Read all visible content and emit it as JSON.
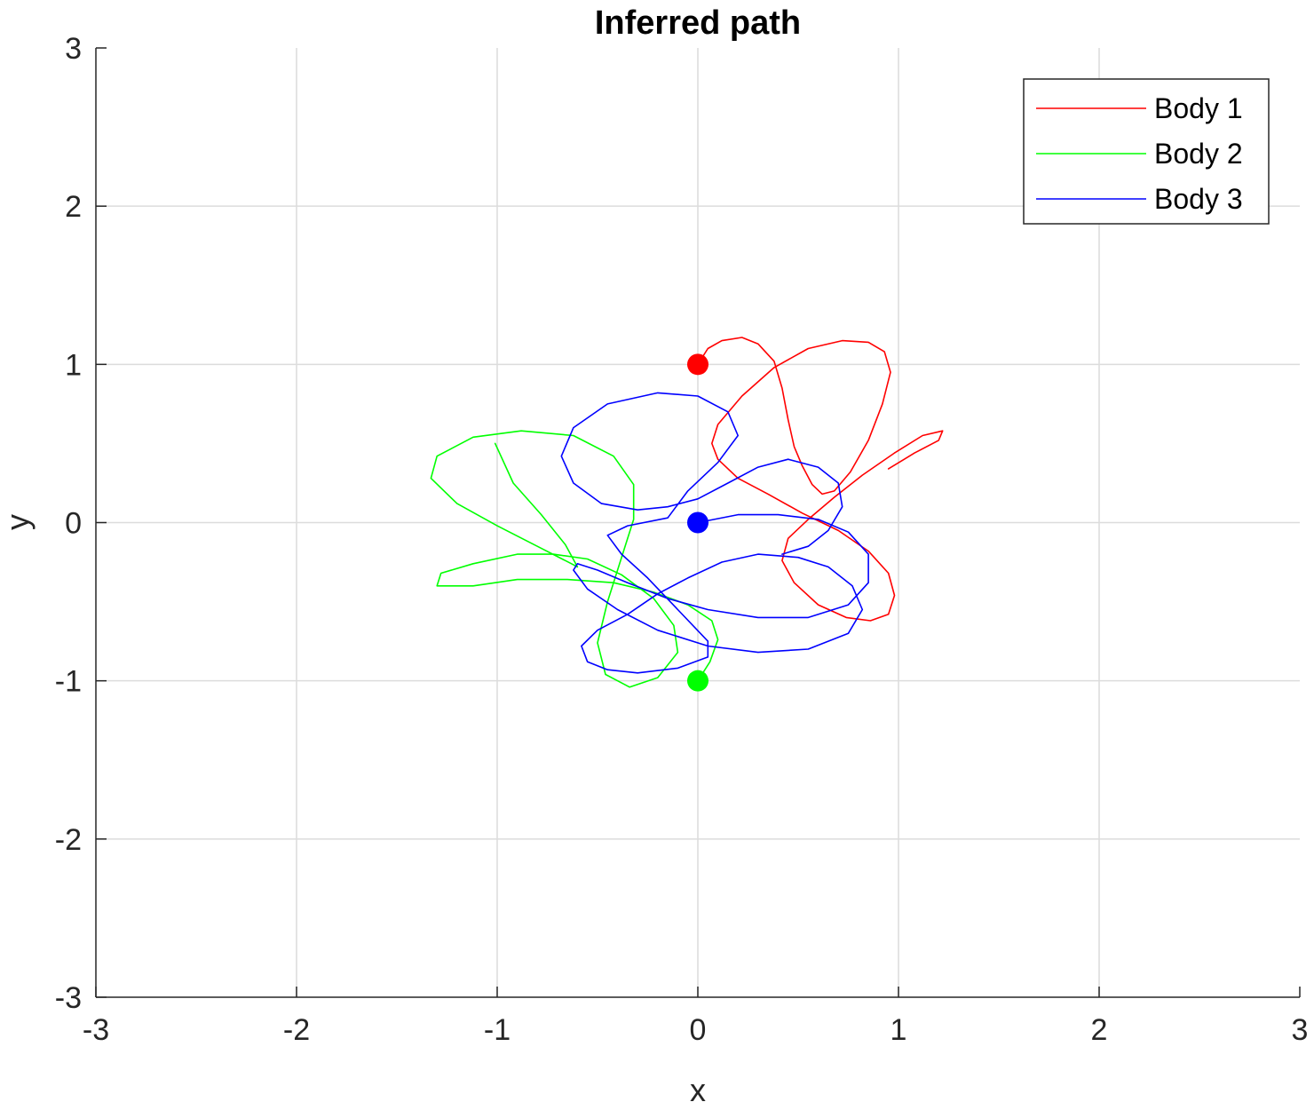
{
  "chart_data": {
    "type": "line",
    "title": "Inferred path",
    "xlabel": "x",
    "ylabel": "y",
    "xlim": [
      -3,
      3
    ],
    "ylim": [
      -3,
      3
    ],
    "xticks": [
      -3,
      -2,
      -1,
      0,
      1,
      2,
      3
    ],
    "yticks": [
      -3,
      -2,
      -1,
      0,
      1,
      2,
      3
    ],
    "xtick_labels": [
      "-3",
      "-2",
      "-1",
      "0",
      "1",
      "2",
      "3"
    ],
    "ytick_labels": [
      "-3",
      "-2",
      "-1",
      "0",
      "1",
      "2",
      "3"
    ],
    "grid": true,
    "legend_position": "top-right",
    "series": [
      {
        "name": "Body 1",
        "color": "#ff0000",
        "start": [
          0,
          1
        ],
        "points": [
          [
            0,
            1
          ],
          [
            0.05,
            1.1
          ],
          [
            0.12,
            1.15
          ],
          [
            0.22,
            1.17
          ],
          [
            0.3,
            1.13
          ],
          [
            0.38,
            1.02
          ],
          [
            0.42,
            0.85
          ],
          [
            0.45,
            0.65
          ],
          [
            0.48,
            0.48
          ],
          [
            0.52,
            0.36
          ],
          [
            0.57,
            0.24
          ],
          [
            0.62,
            0.18
          ],
          [
            0.68,
            0.2
          ],
          [
            0.76,
            0.32
          ],
          [
            0.85,
            0.52
          ],
          [
            0.92,
            0.75
          ],
          [
            0.96,
            0.95
          ],
          [
            0.93,
            1.08
          ],
          [
            0.85,
            1.14
          ],
          [
            0.72,
            1.15
          ],
          [
            0.55,
            1.1
          ],
          [
            0.38,
            0.98
          ],
          [
            0.22,
            0.8
          ],
          [
            0.1,
            0.62
          ],
          [
            0.07,
            0.5
          ],
          [
            0.1,
            0.4
          ],
          [
            0.2,
            0.28
          ],
          [
            0.35,
            0.18
          ],
          [
            0.52,
            0.06
          ],
          [
            0.7,
            -0.05
          ],
          [
            0.85,
            -0.18
          ],
          [
            0.95,
            -0.32
          ],
          [
            0.98,
            -0.46
          ],
          [
            0.95,
            -0.58
          ],
          [
            0.86,
            -0.62
          ],
          [
            0.74,
            -0.6
          ],
          [
            0.6,
            -0.52
          ],
          [
            0.48,
            -0.38
          ],
          [
            0.42,
            -0.24
          ],
          [
            0.45,
            -0.1
          ],
          [
            0.55,
            0.02
          ],
          [
            0.68,
            0.16
          ],
          [
            0.82,
            0.3
          ],
          [
            0.98,
            0.44
          ],
          [
            1.12,
            0.55
          ],
          [
            1.22,
            0.58
          ],
          [
            1.2,
            0.52
          ],
          [
            1.08,
            0.44
          ],
          [
            0.95,
            0.34
          ]
        ]
      },
      {
        "name": "Body 2",
        "color": "#00ff00",
        "start": [
          0,
          -1
        ],
        "points": [
          [
            0,
            -1
          ],
          [
            0.06,
            -0.88
          ],
          [
            0.1,
            -0.74
          ],
          [
            0.07,
            -0.62
          ],
          [
            -0.05,
            -0.52
          ],
          [
            -0.22,
            -0.44
          ],
          [
            -0.42,
            -0.38
          ],
          [
            -0.65,
            -0.36
          ],
          [
            -0.9,
            -0.36
          ],
          [
            -1.12,
            -0.4
          ],
          [
            -1.3,
            -0.4
          ],
          [
            -1.28,
            -0.32
          ],
          [
            -1.12,
            -0.26
          ],
          [
            -0.9,
            -0.2
          ],
          [
            -0.72,
            -0.2
          ],
          [
            -0.55,
            -0.23
          ],
          [
            -0.38,
            -0.33
          ],
          [
            -0.22,
            -0.48
          ],
          [
            -0.12,
            -0.65
          ],
          [
            -0.1,
            -0.82
          ],
          [
            -0.2,
            -0.98
          ],
          [
            -0.34,
            -1.04
          ],
          [
            -0.46,
            -0.96
          ],
          [
            -0.5,
            -0.76
          ],
          [
            -0.45,
            -0.5
          ],
          [
            -0.38,
            -0.22
          ],
          [
            -0.32,
            0.02
          ],
          [
            -0.32,
            0.24
          ],
          [
            -0.42,
            0.42
          ],
          [
            -0.62,
            0.55
          ],
          [
            -0.88,
            0.58
          ],
          [
            -1.12,
            0.54
          ],
          [
            -1.3,
            0.42
          ],
          [
            -1.33,
            0.28
          ],
          [
            -1.2,
            0.12
          ],
          [
            -1.0,
            -0.02
          ],
          [
            -0.8,
            -0.15
          ],
          [
            -0.63,
            -0.26
          ],
          [
            -0.6,
            -0.28
          ],
          [
            -0.66,
            -0.14
          ],
          [
            -0.78,
            0.05
          ],
          [
            -0.92,
            0.25
          ],
          [
            -1.01,
            0.5
          ]
        ]
      },
      {
        "name": "Body 3",
        "color": "#0000ff",
        "start": [
          0,
          0
        ],
        "points": [
          [
            0,
            0
          ],
          [
            0.2,
            0.05
          ],
          [
            0.4,
            0.05
          ],
          [
            0.6,
            0.02
          ],
          [
            0.75,
            -0.06
          ],
          [
            0.85,
            -0.2
          ],
          [
            0.85,
            -0.38
          ],
          [
            0.75,
            -0.52
          ],
          [
            0.55,
            -0.6
          ],
          [
            0.3,
            -0.6
          ],
          [
            0.05,
            -0.55
          ],
          [
            -0.15,
            -0.48
          ],
          [
            -0.35,
            -0.38
          ],
          [
            -0.5,
            -0.3
          ],
          [
            -0.6,
            -0.26
          ],
          [
            -0.62,
            -0.3
          ],
          [
            -0.55,
            -0.42
          ],
          [
            -0.4,
            -0.55
          ],
          [
            -0.2,
            -0.68
          ],
          [
            0.05,
            -0.78
          ],
          [
            0.3,
            -0.82
          ],
          [
            0.55,
            -0.8
          ],
          [
            0.75,
            -0.7
          ],
          [
            0.82,
            -0.55
          ],
          [
            0.77,
            -0.4
          ],
          [
            0.65,
            -0.28
          ],
          [
            0.5,
            -0.22
          ],
          [
            0.3,
            -0.2
          ],
          [
            0.12,
            -0.25
          ],
          [
            -0.05,
            -0.35
          ],
          [
            -0.2,
            -0.45
          ],
          [
            -0.35,
            -0.58
          ],
          [
            -0.5,
            -0.68
          ],
          [
            -0.58,
            -0.78
          ],
          [
            -0.55,
            -0.88
          ],
          [
            -0.45,
            -0.93
          ],
          [
            -0.3,
            -0.95
          ],
          [
            -0.1,
            -0.92
          ],
          [
            0.05,
            -0.85
          ],
          [
            0.05,
            -0.75
          ],
          [
            -0.1,
            -0.55
          ],
          [
            -0.25,
            -0.35
          ],
          [
            -0.38,
            -0.2
          ],
          [
            -0.45,
            -0.08
          ],
          [
            -0.35,
            -0.02
          ],
          [
            -0.15,
            0.03
          ],
          [
            -0.05,
            0.2
          ],
          [
            0.1,
            0.38
          ],
          [
            0.2,
            0.55
          ],
          [
            0.15,
            0.7
          ],
          [
            0,
            0.8
          ],
          [
            -0.2,
            0.82
          ],
          [
            -0.45,
            0.75
          ],
          [
            -0.62,
            0.6
          ],
          [
            -0.68,
            0.42
          ],
          [
            -0.62,
            0.25
          ],
          [
            -0.48,
            0.12
          ],
          [
            -0.3,
            0.08
          ],
          [
            -0.15,
            0.1
          ],
          [
            0,
            0.15
          ],
          [
            0.15,
            0.25
          ],
          [
            0.3,
            0.35
          ],
          [
            0.45,
            0.4
          ],
          [
            0.6,
            0.35
          ],
          [
            0.7,
            0.25
          ],
          [
            0.72,
            0.1
          ],
          [
            0.65,
            -0.05
          ],
          [
            0.55,
            -0.15
          ],
          [
            0.42,
            -0.2
          ]
        ]
      }
    ]
  }
}
